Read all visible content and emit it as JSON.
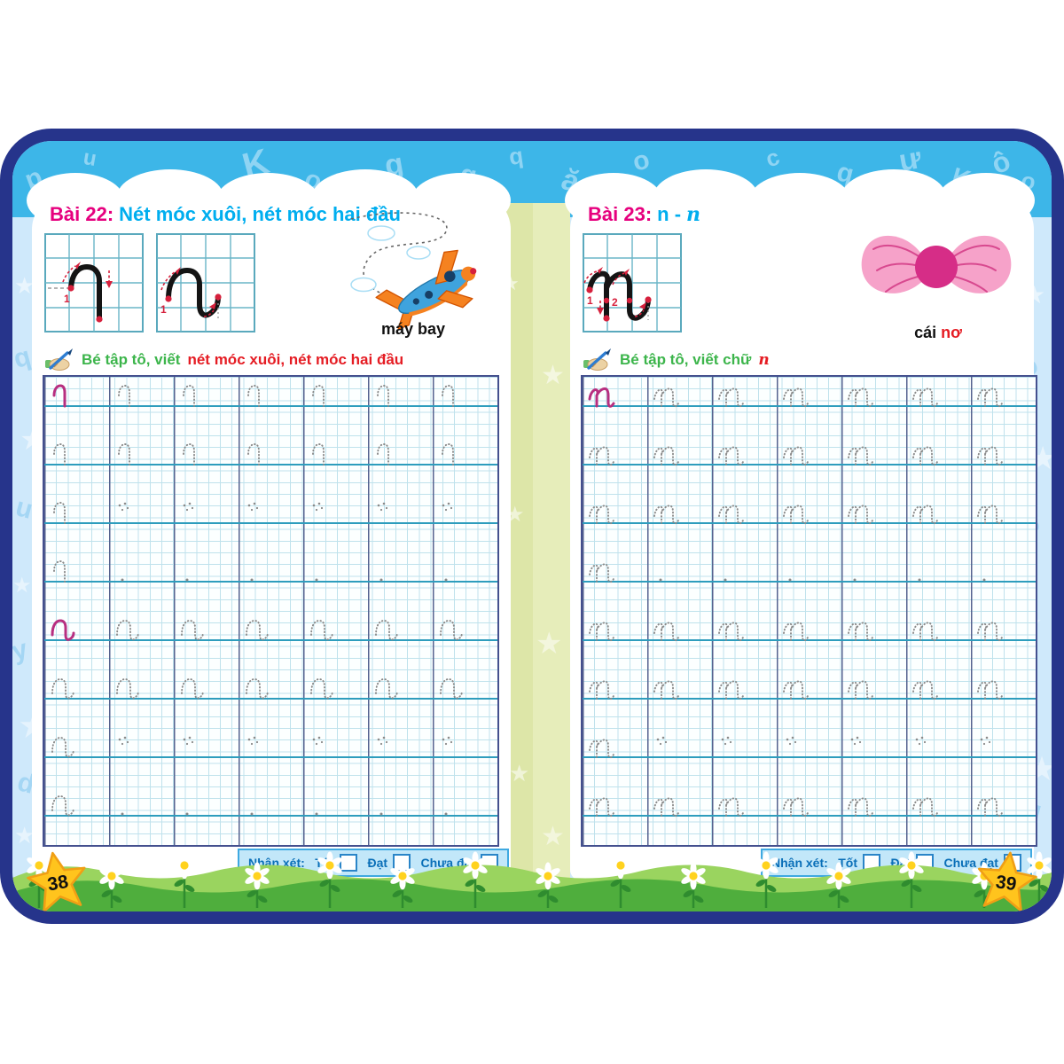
{
  "left_page": {
    "lesson_label": "Bài 22:",
    "lesson_title": "Nét móc xuôi, nét móc hai đầu",
    "demo_numbers": [
      "1",
      "1"
    ],
    "illustration": {
      "label": "máy bay"
    },
    "instruction": {
      "prefix": "Bé tập tô, viết",
      "highlight": "nét móc xuôi, nét móc hai đầu"
    },
    "evaluation": {
      "label": "Nhận xét:",
      "options": [
        "Tốt",
        "Đạt",
        "Chưa đạt"
      ]
    },
    "page_number": "38",
    "practice_rows": [
      {
        "glyph": "hook",
        "cells": [
          "solid",
          "dotted",
          "dotted",
          "dotted",
          "dotted",
          "dotted",
          "dotted"
        ]
      },
      {
        "glyph": "hook",
        "cells": [
          "dotted",
          "dotted",
          "dotted",
          "dotted",
          "dotted",
          "dotted",
          "dotted"
        ]
      },
      {
        "glyph": "hook",
        "cells": [
          "dotted",
          "dots",
          "dots",
          "dots",
          "dots",
          "dots",
          "dots"
        ]
      },
      {
        "glyph": "hook",
        "cells": [
          "dotted",
          "dot",
          "dot",
          "dot",
          "dot",
          "dot",
          "dot"
        ]
      },
      {
        "glyph": "wave",
        "cells": [
          "solid",
          "dotted",
          "dotted",
          "dotted",
          "dotted",
          "dotted",
          "dotted"
        ]
      },
      {
        "glyph": "wave",
        "cells": [
          "dotted",
          "dotted",
          "dotted",
          "dotted",
          "dotted",
          "dotted",
          "dotted"
        ]
      },
      {
        "glyph": "wave",
        "cells": [
          "dotted",
          "dots",
          "dots",
          "dots",
          "dots",
          "dots",
          "dots"
        ]
      },
      {
        "glyph": "wave",
        "cells": [
          "dotted",
          "dot",
          "dot",
          "dot",
          "dot",
          "dot",
          "dot"
        ]
      }
    ]
  },
  "right_page": {
    "lesson_label": "Bài 23:",
    "lesson_title": "n -",
    "lesson_title_cursive": "n",
    "demo_numbers": [
      "1",
      "2"
    ],
    "illustration": {
      "label": "cái",
      "label_accent": "nơ"
    },
    "instruction": {
      "prefix": "Bé tập tô, viết chữ",
      "highlight": "n"
    },
    "evaluation": {
      "label": "Nhận xét:",
      "options": [
        "Tốt",
        "Đạt",
        "Chưa đạt"
      ]
    },
    "page_number": "39",
    "practice_rows": [
      {
        "glyph": "n",
        "cells": [
          "solid",
          "dotted",
          "dotted",
          "dotted",
          "dotted",
          "dotted",
          "dotted"
        ]
      },
      {
        "glyph": "n",
        "cells": [
          "dotted",
          "dotted",
          "dotted",
          "dotted",
          "dotted",
          "dotted",
          "dotted"
        ]
      },
      {
        "glyph": "n",
        "cells": [
          "dotted",
          "dotted",
          "dotted",
          "dotted",
          "dotted",
          "dotted",
          "dotted"
        ]
      },
      {
        "glyph": "n",
        "cells": [
          "dotted",
          "dot",
          "dot",
          "dot",
          "dot",
          "dot",
          "dot"
        ]
      },
      {
        "glyph": "n",
        "cells": [
          "dotted",
          "dotted",
          "dotted",
          "dotted",
          "dotted",
          "dotted",
          "dotted"
        ]
      },
      {
        "glyph": "n",
        "cells": [
          "dotted",
          "dotted",
          "dotted",
          "dotted",
          "dotted",
          "dotted",
          "dotted"
        ]
      },
      {
        "glyph": "n",
        "cells": [
          "dotted",
          "dots",
          "dots",
          "dots",
          "dots",
          "dots",
          "dots"
        ]
      },
      {
        "glyph": "n",
        "cells": [
          "dotted",
          "dotted",
          "dotted",
          "dotted",
          "dotted",
          "dotted",
          "dotted"
        ]
      }
    ]
  },
  "decorations": {
    "band_letters": [
      "p",
      "u",
      "q",
      "K",
      "o",
      "g",
      "g",
      "q",
      "ă",
      "o",
      "g",
      "c",
      "q",
      "ư",
      "K",
      "ô",
      "o",
      "g"
    ],
    "side_letters_left": [
      "q",
      "u",
      "y",
      "d"
    ],
    "side_letters_right": [
      "ồ",
      "e",
      "n",
      "g"
    ]
  },
  "colors": {
    "frame_navy": "#26348b",
    "band_blue": "#3db6e8",
    "side_blue": "#cfe9fb",
    "spine_green": "#dfe7ab",
    "title_pink": "#e6007e",
    "title_cyan": "#00aeef",
    "text_green": "#3cb54b",
    "text_red": "#e51c23",
    "glyph_magenta": "#b72f80",
    "grid_baseline_teal": "#2e9dbd",
    "grass_green": "#4fae3d",
    "star_yellow": "#ffc41d"
  }
}
